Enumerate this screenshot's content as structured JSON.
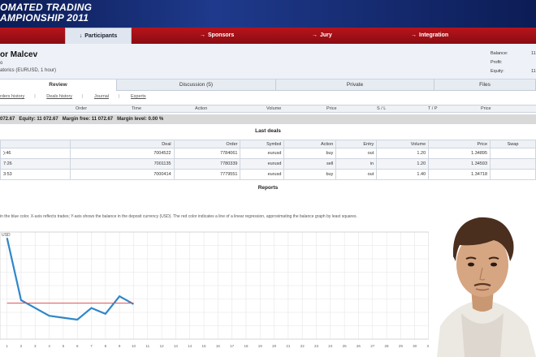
{
  "banner": {
    "line1": "OMATED TRADING",
    "line2": "AMPIONSHIP 2011"
  },
  "nav": {
    "items": [
      "Participants",
      "Sponsors",
      "Jury",
      "Integration"
    ]
  },
  "participant": {
    "name": "or Malcev",
    "country": "o",
    "expert": "atorics (EURUSD, 1 hour)",
    "balance_label": "Balance:",
    "balance_value": "11",
    "profit_label": "Profit:",
    "equity_label": "Equity:",
    "equity_value": "11"
  },
  "tabs": [
    "Review",
    "Discussion (5)",
    "Private",
    "Files"
  ],
  "subtabs": [
    "rders history",
    "Deals history",
    "Journal",
    "Experts"
  ],
  "orders_header": [
    "Order",
    "Time",
    "Action",
    "Volume",
    "Price",
    "S / L",
    "T / P",
    "Price"
  ],
  "summary": {
    "balance": "072.67",
    "equity": "Equity: 11 072.67",
    "margin_free": "Margin free: 11 072.67",
    "margin_level": "Margin level: 0.00 %"
  },
  "last_deals": {
    "title": "Last deals",
    "columns": [
      "",
      "Deal",
      "Order",
      "Symbol",
      "Action",
      "Entry",
      "Volume",
      "Price",
      "Swap"
    ],
    "rows": [
      [
        "):46",
        "7004522",
        "7784061",
        "eurusd",
        "buy",
        "out",
        "1.20",
        "1.34895",
        ""
      ],
      [
        "7:26",
        "7001135",
        "7780339",
        "eurusd",
        "sell",
        "in",
        "1.20",
        "1.34593",
        ""
      ],
      [
        "3:53",
        "7000414",
        "7779551",
        "eurusd",
        "buy",
        "out",
        "1.40",
        "1.34718",
        ""
      ]
    ]
  },
  "reports": {
    "title": "Reports",
    "note": "in the blue color. X-axis reflects trades; Y-axis shows the balance in the deposit currency (USD). The red color indicates a line of a linear regression, approximating the balance graph by least squares.",
    "axis_unit": "USD"
  },
  "chart_data": {
    "type": "line",
    "x": [
      1,
      2,
      3,
      4,
      5,
      6,
      7,
      8,
      9,
      10
    ],
    "series": [
      {
        "values": [
          11420,
          11100,
          11060,
          11020,
          11010,
          11000,
          11060,
          11030,
          11120,
          11080
        ],
        "color": "#2f87c9"
      },
      {
        "values": [
          11085,
          11085,
          11085,
          11085,
          11085,
          11085,
          11085,
          11085,
          11085,
          11085
        ],
        "color": "#e05050"
      }
    ],
    "x_ticks": [
      "1",
      "2",
      "3",
      "4",
      "5",
      "6",
      "7",
      "8",
      "9",
      "10",
      "11",
      "12",
      "13",
      "14",
      "15",
      "16",
      "17",
      "18",
      "19",
      "20",
      "21",
      "22",
      "23",
      "24",
      "25",
      "26",
      "27",
      "28",
      "29",
      "30",
      "31"
    ],
    "xlim": [
      0.5,
      31
    ],
    "ylim": [
      10900,
      11450
    ],
    "grid": true
  },
  "colors": {
    "banner": "#0c1c55",
    "nav": "#b8141c",
    "balance_line": "#2f87c9",
    "regression_line": "#e05050"
  }
}
